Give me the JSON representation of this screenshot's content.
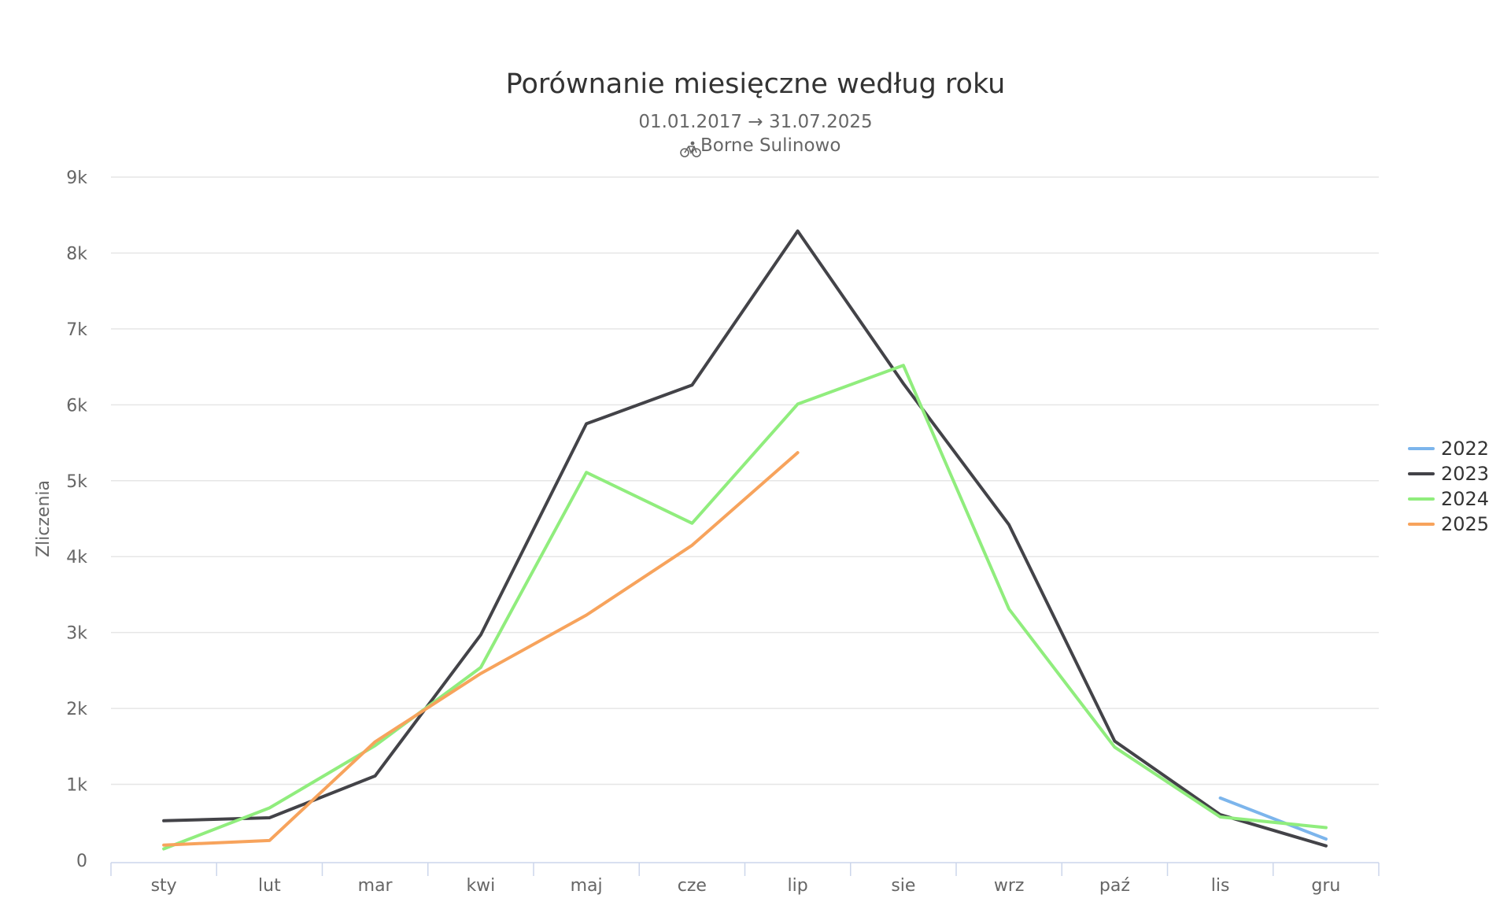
{
  "chart_data": {
    "type": "line",
    "title": "Porównanie miesięczne według roku",
    "subtitle": "01.01.2017 → 31.07.2025",
    "location_icon": "bicycle-icon",
    "location": "Borne Sulinowo",
    "ylabel": "Zliczenia",
    "xlabel": "",
    "categories": [
      "sty",
      "lut",
      "mar",
      "kwi",
      "maj",
      "cze",
      "lip",
      "sie",
      "wrz",
      "paź",
      "lis",
      "gru"
    ],
    "ylim": [
      0,
      9000
    ],
    "yticks": [
      {
        "value": 0,
        "label": "0"
      },
      {
        "value": 1000,
        "label": "1k"
      },
      {
        "value": 2000,
        "label": "2k"
      },
      {
        "value": 3000,
        "label": "3k"
      },
      {
        "value": 4000,
        "label": "4k"
      },
      {
        "value": 5000,
        "label": "5k"
      },
      {
        "value": 6000,
        "label": "6k"
      },
      {
        "value": 7000,
        "label": "7k"
      },
      {
        "value": 8000,
        "label": "8k"
      },
      {
        "value": 9000,
        "label": "9k"
      }
    ],
    "grid": true,
    "legend_position": "right",
    "series": [
      {
        "name": "2022",
        "color": "#7cb5ec",
        "values": [
          null,
          null,
          null,
          null,
          null,
          null,
          null,
          null,
          null,
          null,
          820,
          280
        ]
      },
      {
        "name": "2023",
        "color": "#434348",
        "values": [
          520,
          560,
          1110,
          2970,
          5750,
          6260,
          8290,
          6280,
          4420,
          1570,
          600,
          190
        ]
      },
      {
        "name": "2024",
        "color": "#90ed7d",
        "values": [
          150,
          690,
          1510,
          2540,
          5110,
          4440,
          6010,
          6520,
          3310,
          1490,
          570,
          430
        ]
      },
      {
        "name": "2025",
        "color": "#f7a35c",
        "values": [
          200,
          260,
          1560,
          2460,
          3230,
          4150,
          5370,
          null,
          null,
          null,
          null,
          null
        ]
      }
    ]
  }
}
